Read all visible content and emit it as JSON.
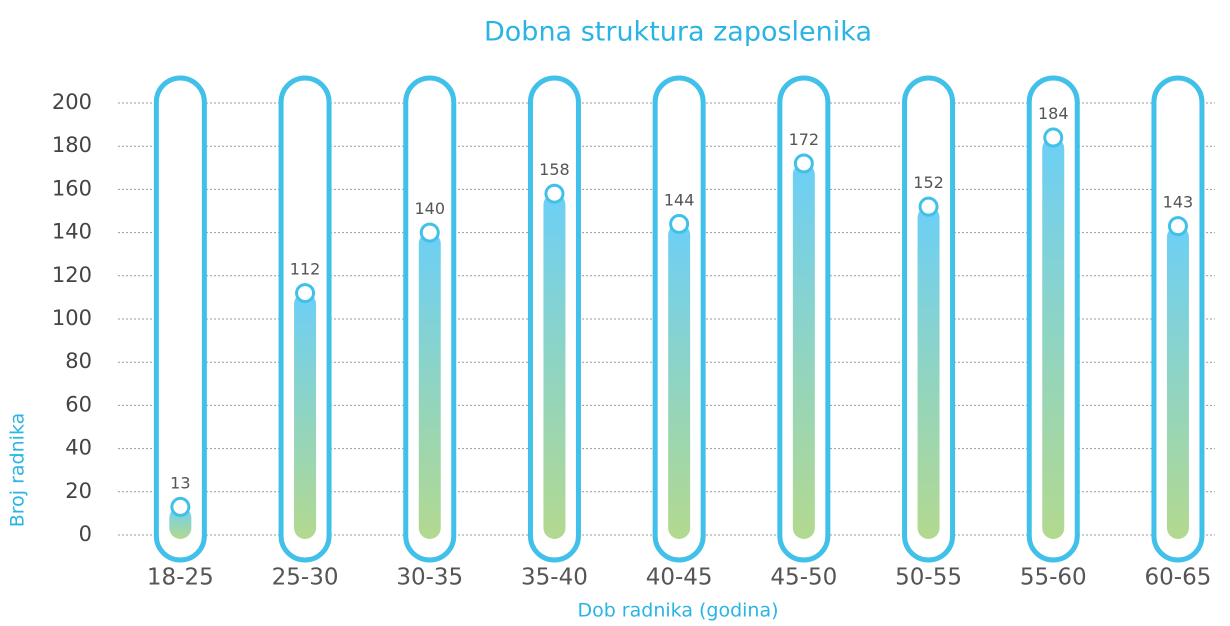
{
  "chart_data": {
    "type": "bar",
    "title": "Dobna struktura zaposlenika",
    "x_label": "Dob radnika (godina)",
    "y_label": "Broj radnika",
    "categories": [
      "18-25",
      "25-30",
      "30-35",
      "35-40",
      "40-45",
      "45-50",
      "50-55",
      "55-60",
      "60-65"
    ],
    "values": [
      13,
      112,
      140,
      158,
      144,
      172,
      152,
      184,
      143
    ],
    "color": "#6ccff6",
    "color_bottom": "#b3d98f",
    "outline": "#41c0ea",
    "ylim": [
      0,
      200
    ],
    "yticks": [
      0,
      20,
      40,
      60,
      80,
      100,
      120,
      140,
      160,
      180,
      200
    ],
    "grid": true
  }
}
